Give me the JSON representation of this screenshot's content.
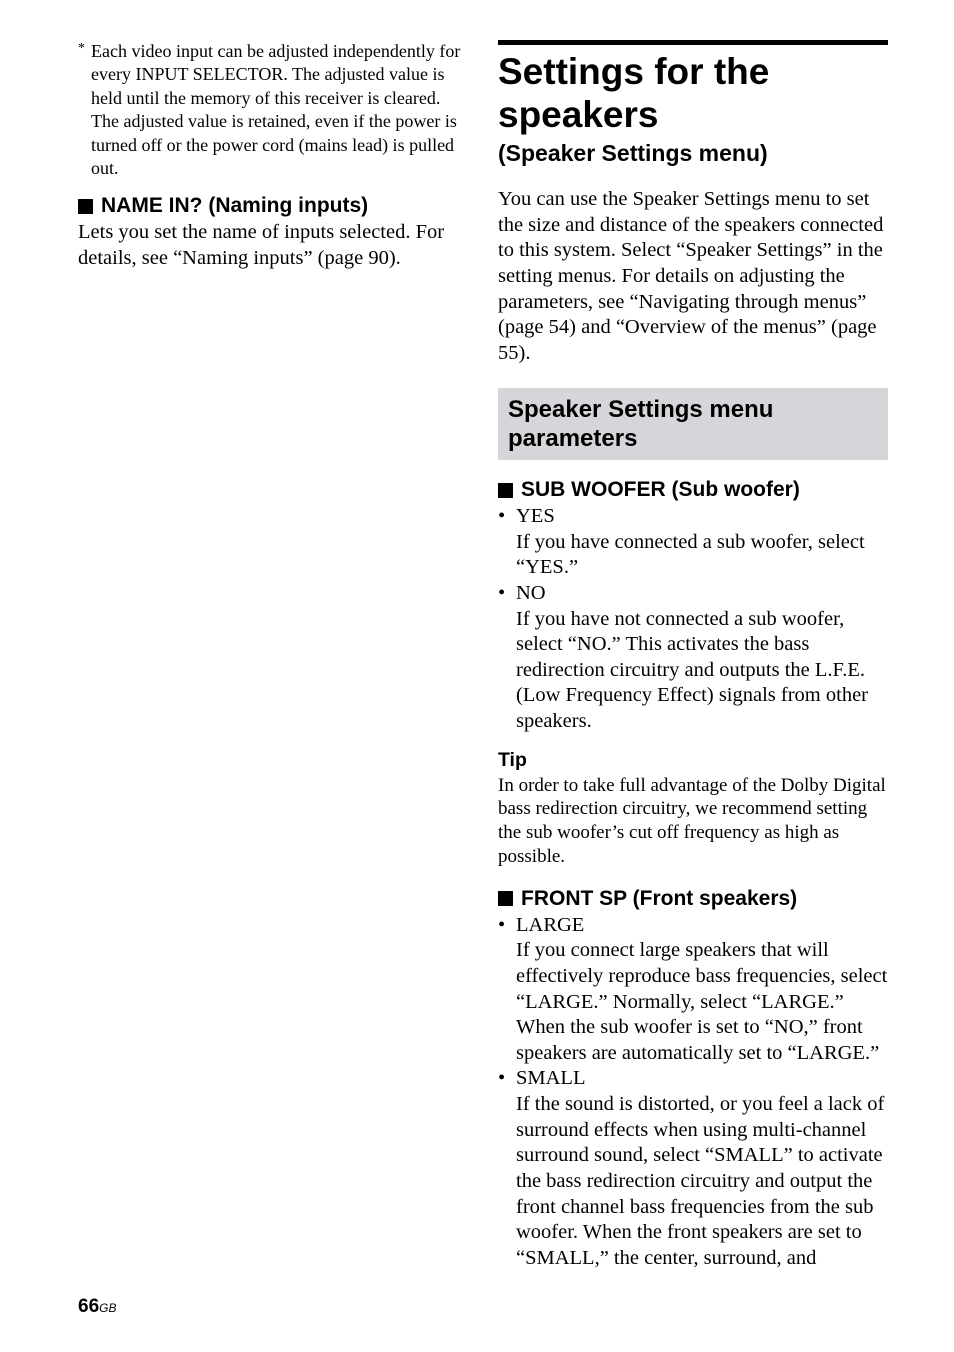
{
  "colors": {
    "bg": "#ffffff",
    "text": "#000000",
    "box_bg": "#d6d6da",
    "rule": "#000000"
  },
  "typography": {
    "serif": "Times New Roman",
    "sans": "Arial",
    "h1_size": 37,
    "h1_sub_size": 23,
    "h2_size": 24,
    "h3_size": 21,
    "body_size": 20.5,
    "tip_body_size": 19,
    "footnote_size": 18
  },
  "left": {
    "footnote_mark": "*",
    "footnote": "Each video input can be adjusted independently for every INPUT SELECTOR. The adjusted value is held until the memory of this receiver is cleared. The adjusted value is retained, even if the power is turned off or the power cord (mains lead) is pulled out.",
    "name_in_heading": "NAME IN? (Naming inputs)",
    "name_in_body": "Lets you set the name of inputs selected. For details, see “Naming inputs” (page 90)."
  },
  "right": {
    "title": "Settings for the speakers",
    "subtitle": "(Speaker Settings menu)",
    "intro": "You can use the Speaker Settings menu to set the size and distance of the speakers connected to this system. Select “Speaker Settings” in the setting menus. For details on adjusting the parameters, see “Navigating through menus” (page 54) and “Overview of the menus” (page 55).",
    "h2": "Speaker Settings menu parameters",
    "subwoofer": {
      "heading": "SUB WOOFER (Sub woofer)",
      "items": [
        {
          "title": "YES",
          "desc": "If you have connected a sub woofer, select “YES.”"
        },
        {
          "title": "NO",
          "desc": "If you have not connected a sub woofer, select “NO.” This activates the bass redirection circuitry and outputs the L.F.E. (Low Frequency Effect) signals from other speakers."
        }
      ]
    },
    "tip_heading": "Tip",
    "tip_body": "In order to take full advantage of the Dolby Digital bass redirection circuitry, we recommend setting the sub woofer’s cut off frequency as high as possible.",
    "front": {
      "heading": "FRONT SP (Front speakers)",
      "items": [
        {
          "title": "LARGE",
          "desc": "If you connect large speakers that will effectively reproduce bass frequencies, select “LARGE.” Normally, select “LARGE.” When the sub woofer is set to “NO,” front speakers are automatically set to “LARGE.”"
        },
        {
          "title": "SMALL",
          "desc": "If the sound is distorted, or you feel a lack of surround effects when using multi-channel surround sound, select “SMALL” to activate the bass redirection circuitry and output the front channel bass frequencies from the sub woofer. When the front speakers are set to “SMALL,” the center, surround, and"
        }
      ]
    }
  },
  "page": {
    "number": "66",
    "suffix": "GB"
  }
}
